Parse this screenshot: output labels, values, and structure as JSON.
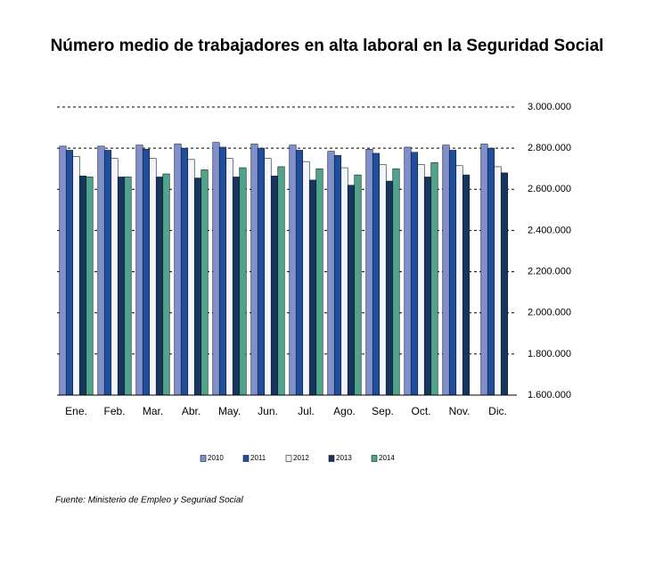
{
  "chart_data": {
    "type": "bar",
    "title": "Número medio de trabajadores en alta laboral en la Seguridad Social",
    "source": "Fuente: Ministerio de Empleo y Seguriad Social",
    "categories": [
      "Ene.",
      "Feb.",
      "Mar.",
      "Abr.",
      "May.",
      "Jun.",
      "Jul.",
      "Ago.",
      "Sep.",
      "Oct.",
      "Nov.",
      "Dic."
    ],
    "series": [
      {
        "name": "2010",
        "color": "#8090cc",
        "values": [
          2810000,
          2810000,
          2815000,
          2820000,
          2828000,
          2820000,
          2815000,
          2785000,
          2795000,
          2805000,
          2815000,
          2820000
        ]
      },
      {
        "name": "2011",
        "color": "#1f4f9c",
        "values": [
          2790000,
          2790000,
          2795000,
          2800000,
          2805000,
          2800000,
          2790000,
          2765000,
          2775000,
          2780000,
          2790000,
          2800000
        ]
      },
      {
        "name": "2012",
        "color": "#f2f5fa",
        "values": [
          2760000,
          2750000,
          2750000,
          2745000,
          2750000,
          2750000,
          2735000,
          2705000,
          2720000,
          2720000,
          2715000,
          2710000
        ]
      },
      {
        "name": "2013",
        "color": "#17365d",
        "values": [
          2665000,
          2660000,
          2660000,
          2655000,
          2660000,
          2665000,
          2645000,
          2620000,
          2640000,
          2660000,
          2670000,
          2680000
        ]
      },
      {
        "name": "2014",
        "color": "#4ea58a",
        "values": [
          2660000,
          2660000,
          2675000,
          2695000,
          2705000,
          2710000,
          2700000,
          2670000,
          2700000,
          2730000,
          null,
          null
        ]
      }
    ],
    "ylim": [
      1600000,
      3000000
    ],
    "yticks": [
      {
        "value": 1600000,
        "label": "1.600.000"
      },
      {
        "value": 1800000,
        "label": "1.800.000"
      },
      {
        "value": 2000000,
        "label": "2.000.000"
      },
      {
        "value": 2200000,
        "label": "2.200.000"
      },
      {
        "value": 2400000,
        "label": "2.400.000"
      },
      {
        "value": 2600000,
        "label": "2.600.000"
      },
      {
        "value": 2800000,
        "label": "2.800.000"
      },
      {
        "value": 3000000,
        "label": "3.000.000"
      }
    ],
    "grid": true,
    "legend": "bottom"
  }
}
